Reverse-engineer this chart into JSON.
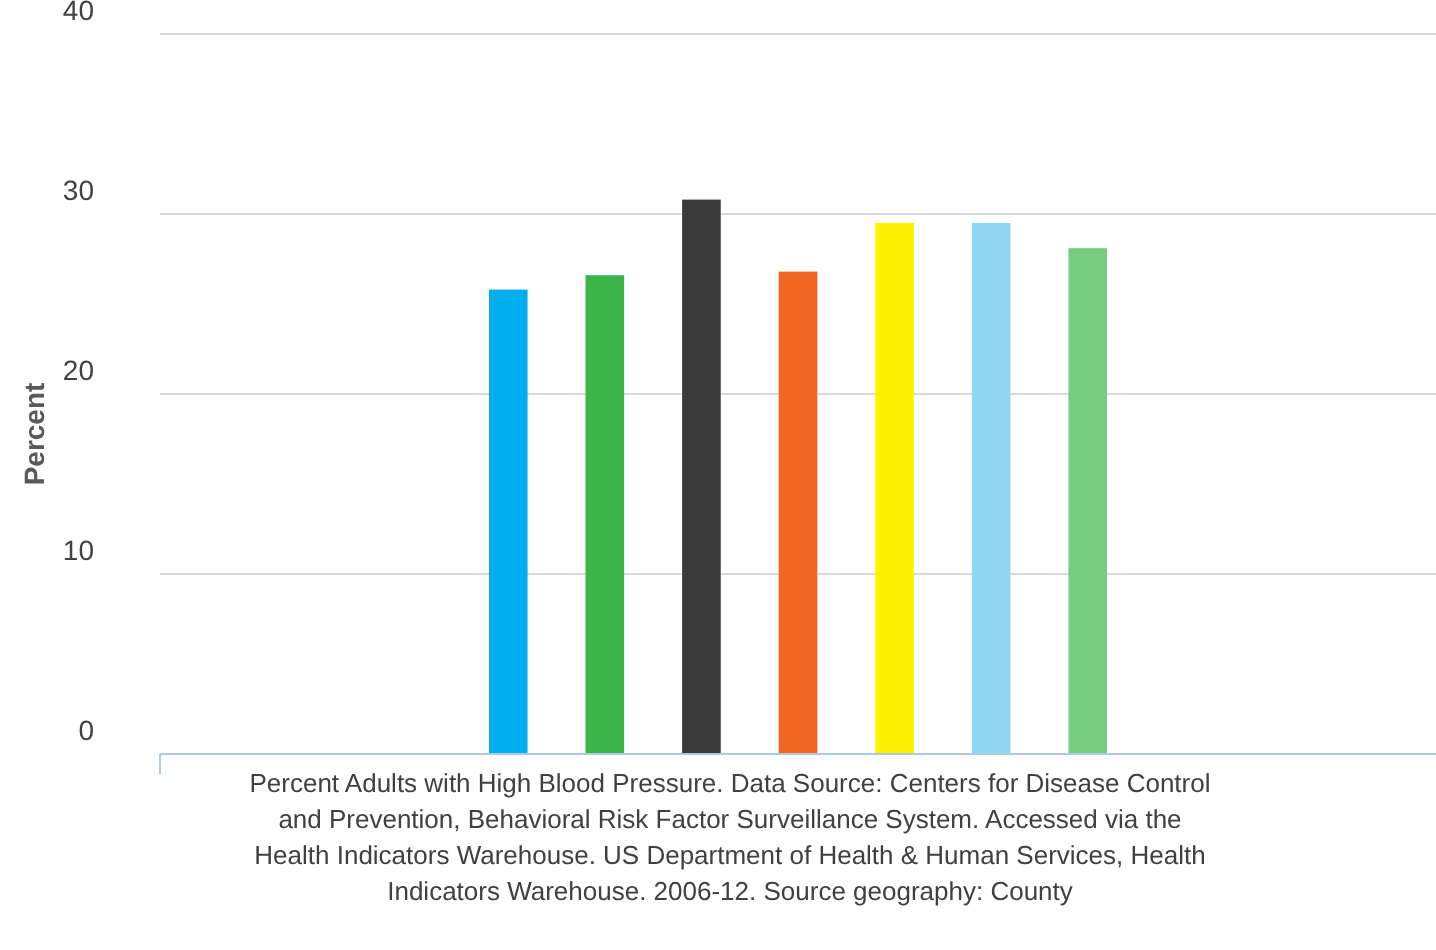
{
  "chart_data": {
    "type": "bar",
    "categories": [
      null
    ],
    "series": [
      {
        "color": "#00aeef",
        "values": [
          25.8
        ]
      },
      {
        "color": "#3bb54a",
        "values": [
          26.6
        ]
      },
      {
        "color": "#3a3a3a",
        "values": [
          30.8
        ]
      },
      {
        "color": "#f26522",
        "values": [
          26.8
        ]
      },
      {
        "color": "#fff200",
        "values": [
          29.5
        ]
      },
      {
        "color": "#8fd8f5",
        "values": [
          29.5
        ]
      },
      {
        "color": "#76cd80",
        "values": [
          28.1
        ]
      }
    ],
    "ylabel": "Percent",
    "xlabel": "Percent Adults with High Blood Pressure. Data Source: Centers for Disease Control and Prevention, Behavioral Risk Factor Surveillance System. Accessed via the Health Indicators Warehouse. US Department of Health & Human Services, Health Indicators Warehouse. 2006-12. Source geography: County",
    "ylim": [
      0,
      40
    ],
    "yticks": [
      0,
      10,
      20,
      30,
      40
    ],
    "grid": "y"
  }
}
